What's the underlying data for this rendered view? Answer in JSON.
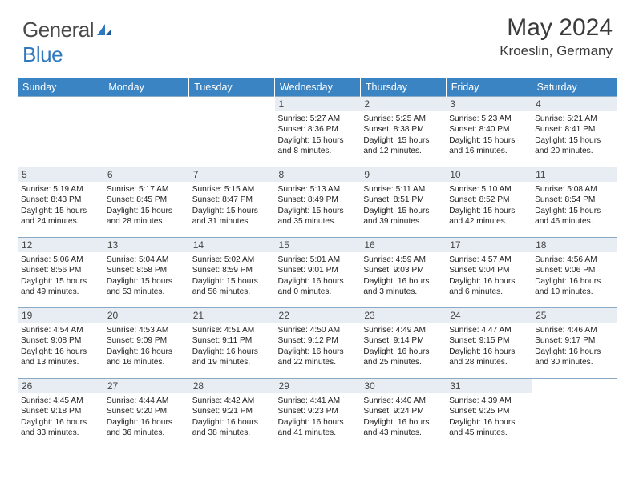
{
  "brand": {
    "word1": "General",
    "word2": "Blue"
  },
  "colors": {
    "header_bg": "#3a84c4",
    "daynum_bg": "#e7edf3",
    "row_border": "#8aa9c4",
    "logo_blue": "#2f78bd"
  },
  "title": "May 2024",
  "location": "Kroeslin, Germany",
  "day_headers": [
    "Sunday",
    "Monday",
    "Tuesday",
    "Wednesday",
    "Thursday",
    "Friday",
    "Saturday"
  ],
  "weeks": [
    [
      {
        "n": "",
        "empty": true
      },
      {
        "n": "",
        "empty": true
      },
      {
        "n": "",
        "empty": true
      },
      {
        "n": "1",
        "sunrise": "5:27 AM",
        "sunset": "8:36 PM",
        "daylight": "15 hours and 8 minutes."
      },
      {
        "n": "2",
        "sunrise": "5:25 AM",
        "sunset": "8:38 PM",
        "daylight": "15 hours and 12 minutes."
      },
      {
        "n": "3",
        "sunrise": "5:23 AM",
        "sunset": "8:40 PM",
        "daylight": "15 hours and 16 minutes."
      },
      {
        "n": "4",
        "sunrise": "5:21 AM",
        "sunset": "8:41 PM",
        "daylight": "15 hours and 20 minutes."
      }
    ],
    [
      {
        "n": "5",
        "sunrise": "5:19 AM",
        "sunset": "8:43 PM",
        "daylight": "15 hours and 24 minutes."
      },
      {
        "n": "6",
        "sunrise": "5:17 AM",
        "sunset": "8:45 PM",
        "daylight": "15 hours and 28 minutes."
      },
      {
        "n": "7",
        "sunrise": "5:15 AM",
        "sunset": "8:47 PM",
        "daylight": "15 hours and 31 minutes."
      },
      {
        "n": "8",
        "sunrise": "5:13 AM",
        "sunset": "8:49 PM",
        "daylight": "15 hours and 35 minutes."
      },
      {
        "n": "9",
        "sunrise": "5:11 AM",
        "sunset": "8:51 PM",
        "daylight": "15 hours and 39 minutes."
      },
      {
        "n": "10",
        "sunrise": "5:10 AM",
        "sunset": "8:52 PM",
        "daylight": "15 hours and 42 minutes."
      },
      {
        "n": "11",
        "sunrise": "5:08 AM",
        "sunset": "8:54 PM",
        "daylight": "15 hours and 46 minutes."
      }
    ],
    [
      {
        "n": "12",
        "sunrise": "5:06 AM",
        "sunset": "8:56 PM",
        "daylight": "15 hours and 49 minutes."
      },
      {
        "n": "13",
        "sunrise": "5:04 AM",
        "sunset": "8:58 PM",
        "daylight": "15 hours and 53 minutes."
      },
      {
        "n": "14",
        "sunrise": "5:02 AM",
        "sunset": "8:59 PM",
        "daylight": "15 hours and 56 minutes."
      },
      {
        "n": "15",
        "sunrise": "5:01 AM",
        "sunset": "9:01 PM",
        "daylight": "16 hours and 0 minutes."
      },
      {
        "n": "16",
        "sunrise": "4:59 AM",
        "sunset": "9:03 PM",
        "daylight": "16 hours and 3 minutes."
      },
      {
        "n": "17",
        "sunrise": "4:57 AM",
        "sunset": "9:04 PM",
        "daylight": "16 hours and 6 minutes."
      },
      {
        "n": "18",
        "sunrise": "4:56 AM",
        "sunset": "9:06 PM",
        "daylight": "16 hours and 10 minutes."
      }
    ],
    [
      {
        "n": "19",
        "sunrise": "4:54 AM",
        "sunset": "9:08 PM",
        "daylight": "16 hours and 13 minutes."
      },
      {
        "n": "20",
        "sunrise": "4:53 AM",
        "sunset": "9:09 PM",
        "daylight": "16 hours and 16 minutes."
      },
      {
        "n": "21",
        "sunrise": "4:51 AM",
        "sunset": "9:11 PM",
        "daylight": "16 hours and 19 minutes."
      },
      {
        "n": "22",
        "sunrise": "4:50 AM",
        "sunset": "9:12 PM",
        "daylight": "16 hours and 22 minutes."
      },
      {
        "n": "23",
        "sunrise": "4:49 AM",
        "sunset": "9:14 PM",
        "daylight": "16 hours and 25 minutes."
      },
      {
        "n": "24",
        "sunrise": "4:47 AM",
        "sunset": "9:15 PM",
        "daylight": "16 hours and 28 minutes."
      },
      {
        "n": "25",
        "sunrise": "4:46 AM",
        "sunset": "9:17 PM",
        "daylight": "16 hours and 30 minutes."
      }
    ],
    [
      {
        "n": "26",
        "sunrise": "4:45 AM",
        "sunset": "9:18 PM",
        "daylight": "16 hours and 33 minutes."
      },
      {
        "n": "27",
        "sunrise": "4:44 AM",
        "sunset": "9:20 PM",
        "daylight": "16 hours and 36 minutes."
      },
      {
        "n": "28",
        "sunrise": "4:42 AM",
        "sunset": "9:21 PM",
        "daylight": "16 hours and 38 minutes."
      },
      {
        "n": "29",
        "sunrise": "4:41 AM",
        "sunset": "9:23 PM",
        "daylight": "16 hours and 41 minutes."
      },
      {
        "n": "30",
        "sunrise": "4:40 AM",
        "sunset": "9:24 PM",
        "daylight": "16 hours and 43 minutes."
      },
      {
        "n": "31",
        "sunrise": "4:39 AM",
        "sunset": "9:25 PM",
        "daylight": "16 hours and 45 minutes."
      },
      {
        "n": "",
        "empty": true
      }
    ]
  ],
  "labels": {
    "sunrise": "Sunrise:",
    "sunset": "Sunset:",
    "daylight": "Daylight:"
  }
}
